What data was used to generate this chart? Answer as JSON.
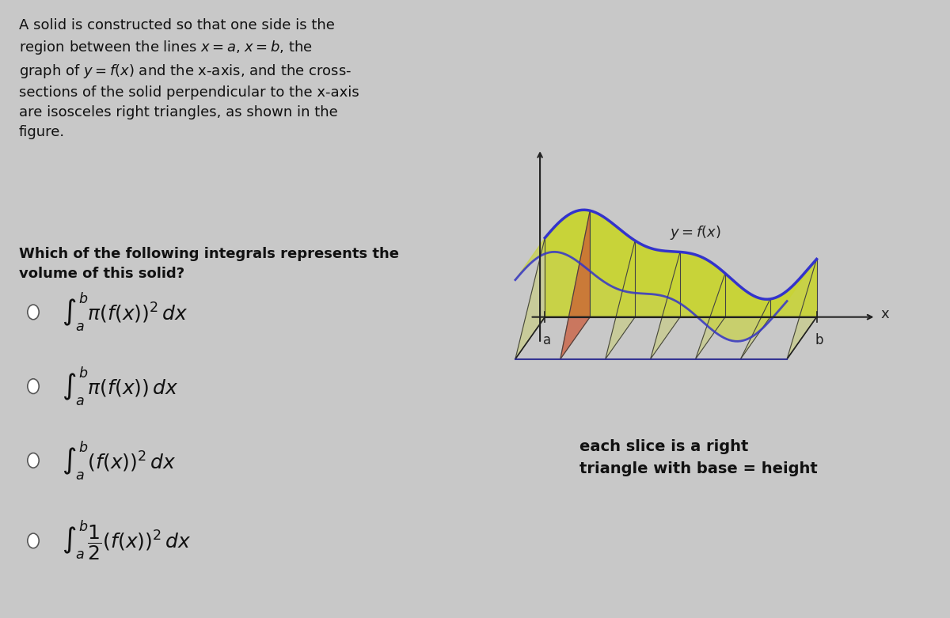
{
  "background_color": "#c8c8c8",
  "title_text": "A solid is constructed so that one side is the\nregion between the lines $x = a$, $x = b$, the\ngraph of $y = f(x)$ and the x-axis, and the cross-\nsections of the solid perpendicular to the x-axis\nare isosceles right triangles, as shown in the\nfigure.",
  "question_text": "Which of the following integrals represents the\nvolume of this solid?",
  "options": [
    "$\\int_{a}^{b} \\pi(f(x))^2 \\, dx$",
    "$\\int_{a}^{b} \\pi(f(x)) \\, dx$",
    "$\\int_{a}^{b} (f(x))^2 \\, dx$",
    "$\\int_{a}^{b} \\dfrac{1}{2}(f(x))^2 \\, dx$"
  ],
  "graph_label": "$y=f(x)$",
  "caption": "each slice is a right\ntriangle with base = height",
  "curve_color": "#3333cc",
  "fill_color": "#c8d430",
  "highlight_color": "#cc5533",
  "axis_color": "#222222",
  "text_color": "#111111",
  "font_size_text": 13,
  "font_size_options": 18,
  "font_size_caption": 14
}
